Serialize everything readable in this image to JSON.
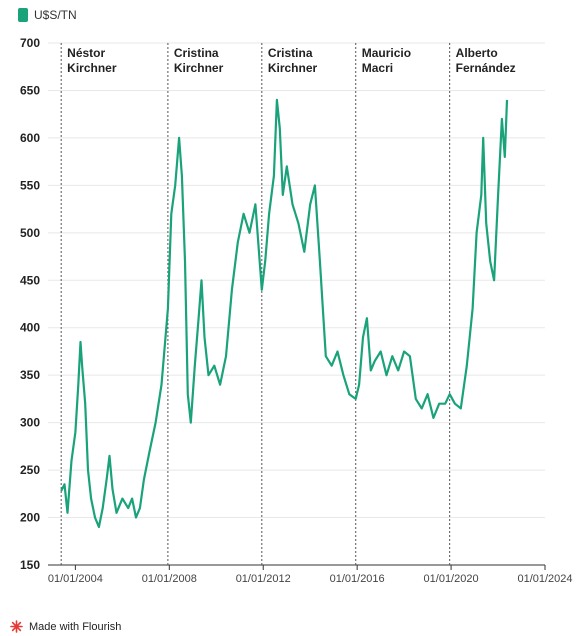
{
  "legend": {
    "label": "U$S/TN",
    "color": "#1aa37a"
  },
  "footer": {
    "label": "Made with Flourish",
    "icon": "flourish-logo-icon",
    "color": "#e53935"
  },
  "chart_data": {
    "type": "line",
    "series": [
      {
        "name": "U$S/TN",
        "color": "#1aa37a",
        "points": [
          [
            "2003-05-25",
            228
          ],
          [
            "2003-07-15",
            235
          ],
          [
            "2003-09-01",
            205
          ],
          [
            "2003-11-01",
            260
          ],
          [
            "2004-01-01",
            290
          ],
          [
            "2004-02-15",
            340
          ],
          [
            "2004-03-20",
            385
          ],
          [
            "2004-04-15",
            360
          ],
          [
            "2004-06-01",
            320
          ],
          [
            "2004-07-15",
            250
          ],
          [
            "2004-09-01",
            220
          ],
          [
            "2004-11-01",
            200
          ],
          [
            "2005-01-01",
            190
          ],
          [
            "2005-03-01",
            210
          ],
          [
            "2005-05-01",
            240
          ],
          [
            "2005-06-15",
            265
          ],
          [
            "2005-08-01",
            230
          ],
          [
            "2005-10-01",
            205
          ],
          [
            "2006-01-01",
            220
          ],
          [
            "2006-04-01",
            210
          ],
          [
            "2006-06-01",
            220
          ],
          [
            "2006-08-01",
            200
          ],
          [
            "2006-10-01",
            210
          ],
          [
            "2006-12-01",
            240
          ],
          [
            "2007-03-01",
            270
          ],
          [
            "2007-06-01",
            300
          ],
          [
            "2007-09-01",
            340
          ],
          [
            "2007-12-10",
            420
          ],
          [
            "2008-02-01",
            520
          ],
          [
            "2008-04-01",
            550
          ],
          [
            "2008-06-01",
            600
          ],
          [
            "2008-07-15",
            560
          ],
          [
            "2008-09-01",
            470
          ],
          [
            "2008-10-15",
            330
          ],
          [
            "2008-12-01",
            300
          ],
          [
            "2009-02-01",
            360
          ],
          [
            "2009-04-01",
            410
          ],
          [
            "2009-05-15",
            450
          ],
          [
            "2009-07-01",
            390
          ],
          [
            "2009-09-01",
            350
          ],
          [
            "2009-12-01",
            360
          ],
          [
            "2010-03-01",
            340
          ],
          [
            "2010-06-01",
            370
          ],
          [
            "2010-09-01",
            440
          ],
          [
            "2010-12-01",
            490
          ],
          [
            "2011-03-01",
            520
          ],
          [
            "2011-06-01",
            500
          ],
          [
            "2011-09-01",
            530
          ],
          [
            "2011-12-10",
            440
          ],
          [
            "2012-02-01",
            470
          ],
          [
            "2012-04-01",
            520
          ],
          [
            "2012-06-15",
            560
          ],
          [
            "2012-08-01",
            640
          ],
          [
            "2012-09-15",
            610
          ],
          [
            "2012-11-01",
            540
          ],
          [
            "2013-01-01",
            570
          ],
          [
            "2013-04-01",
            530
          ],
          [
            "2013-07-01",
            510
          ],
          [
            "2013-10-01",
            480
          ],
          [
            "2014-01-01",
            530
          ],
          [
            "2014-03-15",
            550
          ],
          [
            "2014-06-01",
            470
          ],
          [
            "2014-09-01",
            370
          ],
          [
            "2014-12-01",
            360
          ],
          [
            "2015-03-01",
            375
          ],
          [
            "2015-06-01",
            350
          ],
          [
            "2015-09-01",
            330
          ],
          [
            "2015-12-10",
            325
          ],
          [
            "2016-02-01",
            340
          ],
          [
            "2016-04-01",
            390
          ],
          [
            "2016-06-01",
            410
          ],
          [
            "2016-08-01",
            355
          ],
          [
            "2016-10-01",
            365
          ],
          [
            "2017-01-01",
            375
          ],
          [
            "2017-04-01",
            350
          ],
          [
            "2017-07-01",
            370
          ],
          [
            "2017-10-01",
            355
          ],
          [
            "2018-01-01",
            375
          ],
          [
            "2018-04-01",
            370
          ],
          [
            "2018-07-01",
            325
          ],
          [
            "2018-10-01",
            315
          ],
          [
            "2019-01-01",
            330
          ],
          [
            "2019-04-01",
            305
          ],
          [
            "2019-07-01",
            320
          ],
          [
            "2019-10-01",
            320
          ],
          [
            "2019-12-10",
            330
          ],
          [
            "2020-03-01",
            320
          ],
          [
            "2020-06-01",
            315
          ],
          [
            "2020-09-01",
            360
          ],
          [
            "2020-12-01",
            420
          ],
          [
            "2021-02-01",
            500
          ],
          [
            "2021-04-15",
            540
          ],
          [
            "2021-05-15",
            600
          ],
          [
            "2021-07-01",
            510
          ],
          [
            "2021-09-01",
            470
          ],
          [
            "2021-11-01",
            450
          ],
          [
            "2022-01-01",
            540
          ],
          [
            "2022-03-01",
            620
          ],
          [
            "2022-04-15",
            580
          ],
          [
            "2022-05-20",
            640
          ]
        ]
      }
    ],
    "xlim": [
      "2002-11-01",
      "2024-01-01"
    ],
    "ylim": [
      150,
      700
    ],
    "y_ticks": [
      150,
      200,
      250,
      300,
      350,
      400,
      450,
      500,
      550,
      600,
      650,
      700
    ],
    "x_ticks": [
      {
        "date": "2004-01-01",
        "label": "01/01/2004"
      },
      {
        "date": "2008-01-01",
        "label": "01/01/2008"
      },
      {
        "date": "2012-01-01",
        "label": "01/01/2012"
      },
      {
        "date": "2016-01-01",
        "label": "01/01/2016"
      },
      {
        "date": "2020-01-01",
        "label": "01/01/2020"
      },
      {
        "date": "2024-01-01",
        "label": "01/01/2024"
      }
    ],
    "annotations": [
      {
        "date": "2003-05-25",
        "line1": "Néstor",
        "line2": "Kirchner"
      },
      {
        "date": "2007-12-10",
        "line1": "Cristina",
        "line2": "Kirchner"
      },
      {
        "date": "2011-12-10",
        "line1": "Cristina",
        "line2": "Kirchner"
      },
      {
        "date": "2015-12-10",
        "line1": "Mauricio",
        "line2": "Macri"
      },
      {
        "date": "2019-12-10",
        "line1": "Alberto",
        "line2": "Fernández"
      }
    ],
    "grid": true
  }
}
